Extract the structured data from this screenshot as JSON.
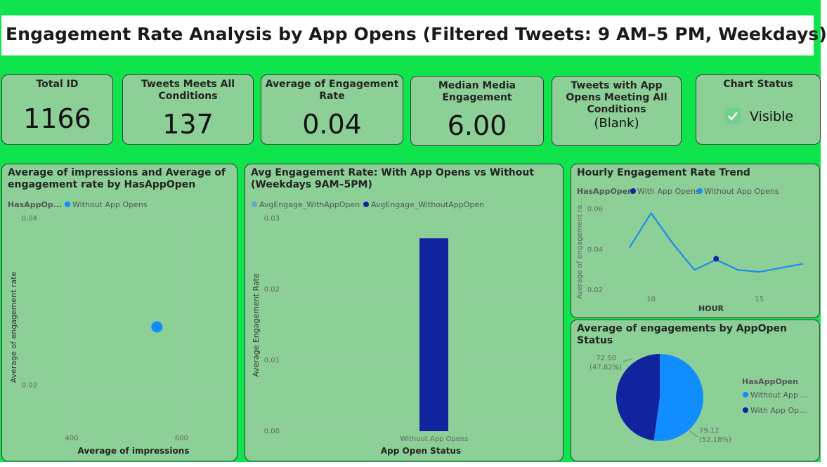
{
  "title": "Engagement Rate Analysis by App Opens (Filtered Tweets: 9 AM–5 PM, Weekdays)",
  "kpis": {
    "total_id": {
      "label": "Total ID",
      "value": "1166"
    },
    "tweets_meets": {
      "label": "Tweets Meets All Conditions",
      "value": "137"
    },
    "avg_engagement": {
      "label": "Average of Engagement Rate",
      "value": "0.04"
    },
    "median_media": {
      "label": "Median Media Engagement",
      "value": "6.00"
    },
    "app_opens_meeting": {
      "label": "Tweets with App Opens Meeting All Conditions",
      "value": "(Blank)"
    },
    "chart_status": {
      "label": "Chart Status",
      "value": "Visible",
      "icon": "checkmark-icon"
    }
  },
  "colors": {
    "canvas": "#0fe44d",
    "card": "#8ccf97",
    "light_blue": "#118dff",
    "dark_blue": "#12239e",
    "line_blue": "#1a8cf0",
    "legend_light": "#5fa8c8"
  },
  "chart_data": [
    {
      "type": "scatter",
      "title": "Average of impressions and Average of engagement rate by HasAppOpen",
      "legend_title": "HasAppOp...",
      "legend": [
        "Without App Opens"
      ],
      "xlabel": "Average of impressions",
      "ylabel": "Average of engagement rate",
      "xlim": [
        350,
        680
      ],
      "ylim": [
        0.014,
        0.04
      ],
      "xticks": [
        "400",
        "600"
      ],
      "yticks": [
        "0.04",
        "0.02"
      ],
      "points": [
        {
          "name": "Without App Opens",
          "x": 555,
          "y": 0.027
        }
      ]
    },
    {
      "type": "bar",
      "title": "Avg Engagement Rate: With App Opens vs Without (Weekdays 9AM–5PM)",
      "legend": [
        "AvgEngage_WithAppOpen",
        "AvgEngage_WithoutAppOpen"
      ],
      "categories": [
        "Without App Opens"
      ],
      "series": [
        {
          "name": "AvgEngage_WithAppOpen",
          "values": [
            0
          ]
        },
        {
          "name": "AvgEngage_WithoutAppOpen",
          "values": [
            0.0272
          ]
        }
      ],
      "xlabel": "App Open Status",
      "ylabel": "Average Engagement Rate",
      "ylim": [
        0,
        0.03
      ],
      "yticks": [
        "0.03",
        "0.02",
        "0.01",
        "0.00"
      ]
    },
    {
      "type": "line",
      "title": "Hourly Engagement Rate Trend",
      "legend_title": "HasAppOpen",
      "legend": [
        "With App Opens",
        "Without App Opens"
      ],
      "xlabel": "HOUR",
      "ylabel": "Average of engagement ra...",
      "xlim": [
        8,
        17.5
      ],
      "ylim": [
        0.018,
        0.063
      ],
      "xticks": [
        "10",
        "15"
      ],
      "yticks": [
        "0.06",
        "0.04",
        "0.02"
      ],
      "series": [
        {
          "name": "Without App Opens",
          "x": [
            9,
            10,
            11,
            12,
            13,
            14,
            15,
            17
          ],
          "y": [
            0.041,
            0.058,
            0.043,
            0.03,
            0.035,
            0.03,
            0.029,
            0.033
          ]
        },
        {
          "name": "With App Opens",
          "x": [
            13
          ],
          "y": [
            0.0355
          ]
        }
      ]
    },
    {
      "type": "pie",
      "title": "Average of engagements by AppOpen Status",
      "legend_title": "HasAppOpen",
      "legend": [
        "Without App ...",
        "With App Op..."
      ],
      "slices": [
        {
          "name": "Without App Opens",
          "value": 79.12,
          "label": "79.12",
          "pct": "(52.18%)"
        },
        {
          "name": "With App Opens",
          "value": 72.5,
          "label": "72.50",
          "pct": "(47.82%)"
        }
      ]
    }
  ]
}
